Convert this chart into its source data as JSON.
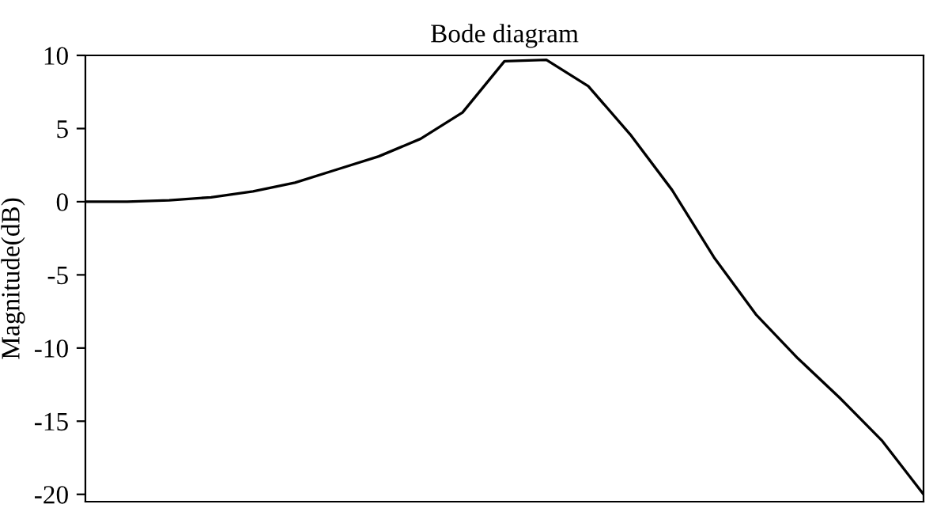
{
  "chart_data": {
    "type": "line",
    "title": "Bode diagram",
    "ylabel": "Magnitude(dB)",
    "categories": [
      null,
      null,
      null,
      null,
      null,
      null,
      null,
      null,
      null,
      null,
      null,
      null,
      null,
      null,
      null,
      null,
      null,
      null,
      null,
      null,
      null
    ],
    "series": [
      {
        "color": "#000000",
        "values": [
          0,
          0,
          0.1,
          0.3,
          0.7,
          1.3,
          2.2,
          3.1,
          4.3,
          6.1,
          9.6,
          9.7,
          7.9,
          4.6,
          0.8,
          -3.8,
          -7.7,
          -10.7,
          -13.4,
          -16.3,
          -20
        ]
      }
    ],
    "ylim": [
      -20.5,
      10
    ],
    "yticks": [
      -20,
      -15,
      -10,
      -5,
      0,
      5,
      10
    ],
    "tick_labels": "y",
    "grid": false,
    "legend": false,
    "marker": "none",
    "line_style": "solid"
  }
}
